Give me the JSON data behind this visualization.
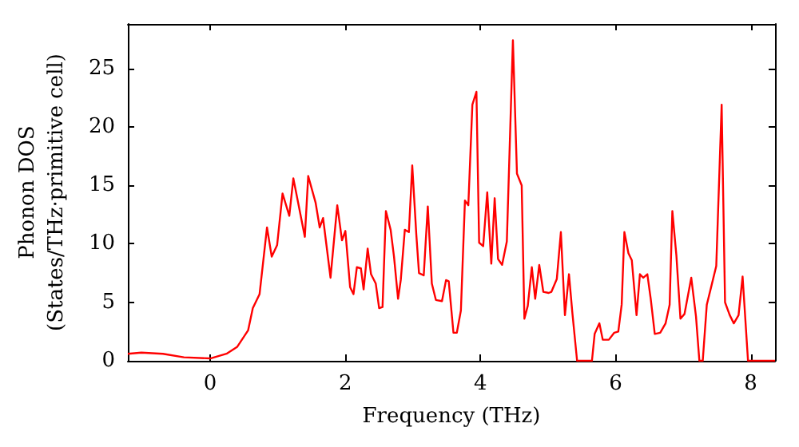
{
  "chart_data": {
    "type": "line",
    "xlabel": "Frequency (THz)",
    "ylabel": "Phonon DOS\n(States/THz·primitive cell)",
    "xlim": [
      -1.22,
      8.36
    ],
    "xticks": [
      0,
      2,
      4,
      6,
      8
    ],
    "ylim": [
      0,
      28.8
    ],
    "yticks": [
      0,
      5,
      10,
      15,
      20,
      25
    ],
    "marker": "none",
    "line_style": "solid",
    "series": [
      {
        "color": "#ff0000",
        "x": [
          -1.22,
          -1.02,
          -0.7,
          -0.39,
          0,
          0.24,
          0.4,
          0.56,
          0.63,
          0.73,
          0.84,
          0.91,
          0.99,
          1.07,
          1.17,
          1.23,
          1.4,
          1.45,
          1.56,
          1.62,
          1.67,
          1.78,
          1.88,
          1.95,
          2.0,
          2.07,
          2.12,
          2.17,
          2.23,
          2.27,
          2.33,
          2.38,
          2.45,
          2.5,
          2.55,
          2.6,
          2.67,
          2.72,
          2.78,
          2.82,
          2.88,
          2.94,
          2.99,
          3.05,
          3.09,
          3.16,
          3.22,
          3.28,
          3.34,
          3.43,
          3.49,
          3.53,
          3.6,
          3.65,
          3.71,
          3.77,
          3.82,
          3.88,
          3.94,
          3.98,
          4.04,
          4.1,
          4.16,
          4.21,
          4.26,
          4.32,
          4.39,
          4.48,
          4.54,
          4.61,
          4.65,
          4.7,
          4.76,
          4.81,
          4.87,
          4.93,
          5.01,
          5.05,
          5.13,
          5.19,
          5.25,
          5.31,
          5.36,
          5.43,
          5.65,
          5.69,
          5.76,
          5.81,
          5.9,
          5.98,
          6.04,
          6.09,
          6.13,
          6.19,
          6.24,
          6.31,
          6.36,
          6.41,
          6.47,
          6.52,
          6.58,
          6.66,
          6.74,
          6.8,
          6.84,
          6.9,
          6.96,
          7.02,
          7.12,
          7.19,
          7.24,
          7.29,
          7.35,
          7.41,
          7.49,
          7.57,
          7.62,
          7.69,
          7.75,
          7.82,
          7.88,
          7.96,
          8.36
        ],
        "values": [
          0.6,
          0.7,
          0.6,
          0.3,
          0.2,
          0.6,
          1.2,
          2.6,
          4.5,
          5.7,
          11.4,
          8.9,
          9.9,
          14.3,
          12.4,
          15.6,
          10.6,
          15.8,
          13.5,
          11.4,
          12.2,
          7.1,
          13.3,
          10.3,
          11.1,
          6.3,
          5.7,
          8.0,
          7.9,
          6.1,
          9.6,
          7.4,
          6.6,
          4.5,
          4.6,
          12.8,
          11.2,
          8.9,
          5.3,
          6.9,
          11.2,
          11.0,
          16.7,
          10.8,
          7.5,
          7.3,
          13.2,
          6.6,
          5.2,
          5.1,
          6.9,
          6.8,
          2.4,
          2.4,
          4.3,
          13.7,
          13.3,
          21.9,
          23.0,
          10.1,
          9.8,
          14.4,
          8.3,
          13.9,
          8.7,
          8.2,
          10.2,
          27.4,
          16.0,
          15.0,
          3.6,
          4.7,
          8.0,
          5.3,
          8.2,
          5.9,
          5.8,
          5.9,
          7.0,
          11.0,
          3.9,
          7.4,
          4.1,
          0,
          0,
          2.3,
          3.2,
          1.8,
          1.8,
          2.4,
          2.5,
          4.8,
          11.0,
          9.2,
          8.6,
          3.9,
          7.4,
          7.1,
          7.4,
          5.3,
          2.3,
          2.4,
          3.2,
          4.8,
          12.8,
          9.0,
          3.6,
          4.0,
          7.1,
          3.8,
          0,
          0,
          4.8,
          6.2,
          8.1,
          21.9,
          5.0,
          3.9,
          3.2,
          3.9,
          7.2,
          0,
          0
        ]
      }
    ]
  }
}
